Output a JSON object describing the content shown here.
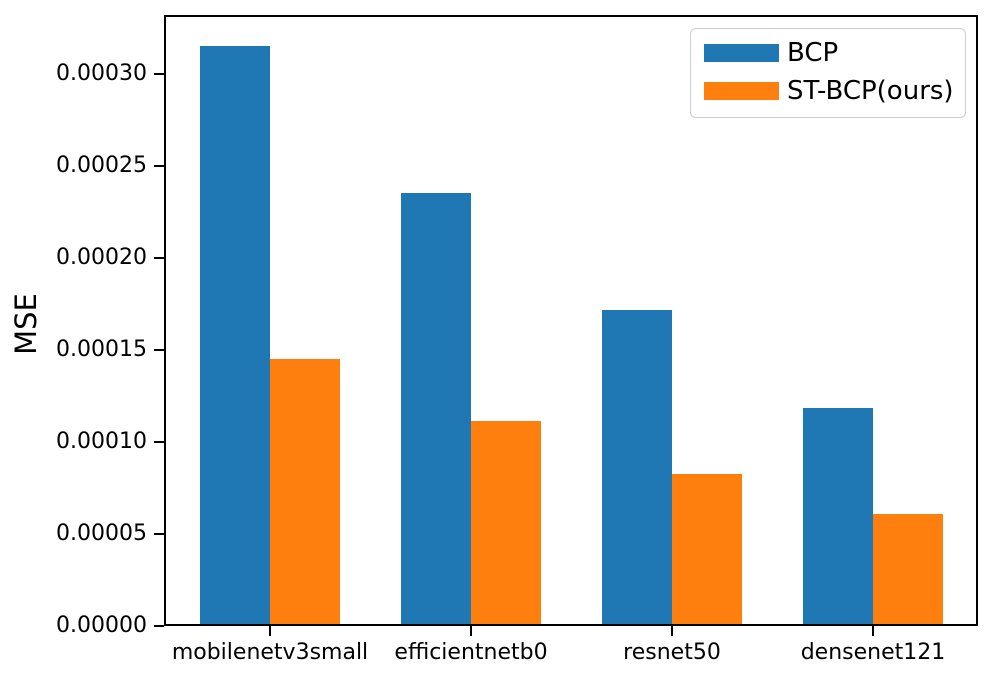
{
  "chart_data": {
    "type": "bar",
    "title": "",
    "xlabel": "",
    "ylabel": "MSE",
    "categories": [
      "mobilenetv3small",
      "efficientnetb0",
      "resnet50",
      "densenet121"
    ],
    "series": [
      {
        "name": "BCP",
        "color": "#1f77b4",
        "values": [
          0.000316,
          0.000236,
          0.000172,
          0.000118
        ]
      },
      {
        "name": "ST-BCP(ours)",
        "color": "#ff7f0e",
        "values": [
          0.000145,
          0.000111,
          8.2e-05,
          6e-05
        ]
      }
    ],
    "ylim": [
      0,
      0.000332
    ],
    "yticks": [
      0.0,
      5e-05,
      0.0001,
      0.00015,
      0.0002,
      0.00025,
      0.0003
    ],
    "ytick_labels": [
      "0.00000",
      "0.00005",
      "0.00010",
      "0.00015",
      "0.00020",
      "0.00025",
      "0.00030"
    ],
    "grid": false,
    "legend_position": "upper right",
    "axis_color": "#000000",
    "background_color": "#ffffff",
    "legend_border_color": "#cccccc"
  }
}
